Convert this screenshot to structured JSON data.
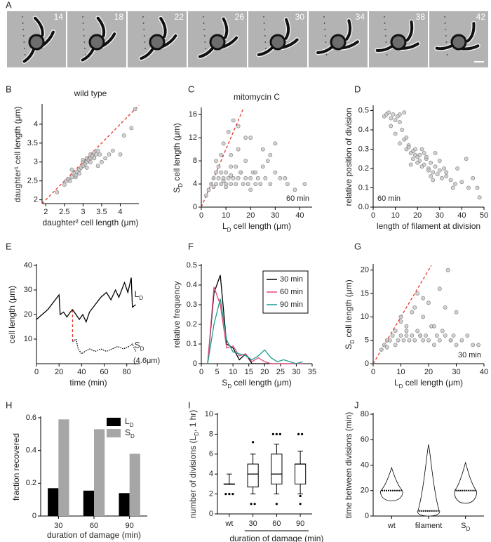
{
  "timelapse": {
    "panel": "A",
    "frames": [
      "14",
      "18",
      "22",
      "26",
      "30",
      "34",
      "38",
      "42"
    ]
  },
  "chart_data": [
    {
      "type": "scatter",
      "panel": "B",
      "title": "wild type",
      "xlabel": "daughter² cell length (μm)",
      "ylabel": "daughter¹ cell length (μm)",
      "xlim": [
        1.9,
        4.5
      ],
      "xticks": [
        2,
        2.5,
        3,
        3.5,
        4
      ],
      "ylim": [
        1.9,
        4.5
      ],
      "yticks": [
        2,
        2.5,
        3,
        3.5,
        4
      ],
      "identity_line": {
        "color": "#e8352e"
      },
      "color": "#c4c4c4",
      "x": [
        2.3,
        2.5,
        2.55,
        2.6,
        2.65,
        2.7,
        2.75,
        2.8,
        2.85,
        2.9,
        2.95,
        3.0,
        3.0,
        3.05,
        3.1,
        3.1,
        3.15,
        3.2,
        3.2,
        3.25,
        3.3,
        3.3,
        3.35,
        3.4,
        3.45,
        3.5,
        3.6,
        3.7,
        3.8,
        4.0,
        4.1,
        4.3,
        4.4,
        2.7,
        2.9,
        3.0,
        3.2,
        3.1,
        2.8,
        3.4
      ],
      "values": [
        2.2,
        2.4,
        2.5,
        2.55,
        2.5,
        2.6,
        2.7,
        2.6,
        2.75,
        2.8,
        2.85,
        2.9,
        3.0,
        2.95,
        3.0,
        3.1,
        3.05,
        3.1,
        3.2,
        3.15,
        3.25,
        3.1,
        3.2,
        3.3,
        3.2,
        3.0,
        3.1,
        3.2,
        3.3,
        3.2,
        3.7,
        3.9,
        4.4,
        2.8,
        2.7,
        3.05,
        3.0,
        2.85,
        2.65,
        2.9
      ]
    },
    {
      "type": "scatter",
      "panel": "C",
      "title": "mitomycin C",
      "xlabel": [
        "L",
        "D",
        " cell length (μm)"
      ],
      "ylabel": [
        "S",
        "D",
        " cell length (μm)"
      ],
      "annotation": "60 min",
      "xlim": [
        0,
        45
      ],
      "xticks": [
        0,
        10,
        20,
        30,
        40
      ],
      "ylim": [
        0,
        17
      ],
      "yticks": [
        0,
        4,
        8,
        12,
        16
      ],
      "identity_line": {
        "color": "#e8352e"
      },
      "color": "#c4c4c4",
      "x": [
        2,
        3,
        4,
        5,
        5,
        6,
        6,
        7,
        7,
        8,
        8,
        9,
        9,
        10,
        10,
        11,
        11,
        12,
        12,
        13,
        13,
        14,
        15,
        15,
        16,
        17,
        18,
        18,
        19,
        20,
        21,
        22,
        23,
        24,
        25,
        26,
        28,
        30,
        32,
        35,
        38,
        42,
        6,
        8,
        10,
        12,
        14,
        16,
        18,
        20,
        22,
        25,
        28,
        30,
        9,
        12,
        15,
        20,
        27,
        34
      ],
      "values": [
        2,
        3,
        4,
        3.5,
        5,
        4,
        6,
        5,
        7,
        4,
        9,
        5,
        11,
        4,
        6,
        5,
        13,
        4,
        7,
        5,
        15,
        4,
        5,
        10,
        6,
        4,
        5,
        12,
        4,
        5,
        6,
        4,
        5,
        4,
        7,
        5,
        4,
        6,
        5,
        4,
        3,
        4,
        8,
        6,
        3.5,
        9,
        7,
        6,
        8,
        3,
        6,
        10,
        9,
        11,
        4.5,
        5.5,
        14,
        12,
        8,
        5
      ]
    },
    {
      "type": "scatter",
      "panel": "D",
      "xlabel": "length of filament at division",
      "ylabel": "relative position of division",
      "annotation": "60 min",
      "xlim": [
        0,
        50
      ],
      "xticks": [
        0,
        10,
        20,
        30,
        40,
        50
      ],
      "ylim": [
        0,
        0.52
      ],
      "yticks": [
        {
          "value": 0,
          "label": "0.0"
        },
        0.1,
        0.2,
        0.3,
        0.4,
        0.5
      ],
      "color": "#c4c4c4",
      "x": [
        5,
        6,
        7,
        8,
        9,
        10,
        11,
        12,
        13,
        14,
        15,
        16,
        17,
        18,
        19,
        20,
        21,
        22,
        23,
        24,
        25,
        26,
        27,
        28,
        29,
        30,
        31,
        32,
        33,
        35,
        37,
        40,
        43,
        45,
        48,
        8,
        10,
        12,
        15,
        18,
        20,
        22,
        25,
        28,
        30,
        33,
        36,
        12,
        16,
        19,
        21,
        24,
        27,
        14,
        17,
        23,
        26,
        38,
        42,
        47
      ],
      "values": [
        0.47,
        0.48,
        0.49,
        0.46,
        0.48,
        0.45,
        0.47,
        0.48,
        0.4,
        0.35,
        0.3,
        0.32,
        0.28,
        0.25,
        0.27,
        0.26,
        0.24,
        0.3,
        0.22,
        0.25,
        0.2,
        0.23,
        0.18,
        0.21,
        0.17,
        0.19,
        0.15,
        0.2,
        0.16,
        0.14,
        0.12,
        0.13,
        0.1,
        0.15,
        0.05,
        0.42,
        0.38,
        0.33,
        0.36,
        0.29,
        0.23,
        0.21,
        0.19,
        0.28,
        0.24,
        0.18,
        0.1,
        0.44,
        0.31,
        0.3,
        0.27,
        0.26,
        0.14,
        0.49,
        0.22,
        0.28,
        0.16,
        0.2,
        0.25,
        0.1
      ]
    },
    {
      "type": "line",
      "panel": "E",
      "xlabel": "time (min)",
      "ylabel": "cell length (μm)",
      "annotation": "(4.6μm)",
      "xlim": [
        0,
        92
      ],
      "xticks": [
        0,
        20,
        40,
        60,
        80
      ],
      "ylim": [
        0,
        40
      ],
      "yticks": [
        10,
        20,
        30,
        40
      ],
      "division_marker": {
        "x": 32,
        "from": 22,
        "to": 9,
        "color": "#e8352e"
      },
      "series": [
        {
          "name": [
            "L",
            "D"
          ],
          "color": "#000000",
          "dash": "solid",
          "x": [
            0,
            10,
            20,
            21,
            24,
            27,
            30,
            32,
            35,
            38,
            41,
            44,
            47,
            52,
            57,
            62,
            66,
            70,
            73,
            78,
            81,
            84,
            85,
            88
          ],
          "values": [
            18,
            22,
            28,
            20,
            21,
            19,
            21,
            22,
            20,
            18,
            20,
            17,
            21,
            24,
            27,
            29,
            26,
            30,
            27,
            33,
            29,
            35,
            23,
            24
          ]
        },
        {
          "name": [
            "S",
            "D"
          ],
          "color": "#000000",
          "dash": "dotted",
          "x": [
            32,
            35,
            37,
            40,
            43,
            47,
            52,
            57,
            62,
            67,
            72,
            77,
            82,
            85,
            88
          ],
          "values": [
            9,
            10,
            6,
            4,
            5,
            6,
            5,
            6,
            5,
            6,
            7,
            6,
            7,
            8,
            5
          ]
        }
      ]
    },
    {
      "type": "line",
      "panel": "F",
      "xlabel": [
        "S",
        "D",
        " cell length (μm)"
      ],
      "ylabel": "relative frequency",
      "legend": "upper right",
      "xlim": [
        0,
        35
      ],
      "xticks": [
        0,
        5,
        10,
        15,
        20,
        25,
        30,
        35
      ],
      "ylim": [
        0,
        0.5
      ],
      "yticks": [
        0,
        0.1,
        0.2,
        0.3,
        0.4,
        0.5
      ],
      "series": [
        {
          "name": "30 min",
          "color": "#000000",
          "dash": "solid",
          "x": [
            2,
            4,
            6,
            8,
            10,
            12,
            14,
            16,
            18,
            20,
            22,
            24,
            26,
            28,
            30,
            32
          ],
          "values": [
            0,
            0.36,
            0.45,
            0.1,
            0.08,
            0.02,
            0.05,
            0,
            0,
            0,
            0,
            0,
            0,
            0,
            0,
            0
          ]
        },
        {
          "name": "60 min",
          "color": "#e0457b",
          "dash": "solid",
          "x": [
            2,
            4,
            6,
            8,
            10,
            12,
            14,
            16,
            18,
            20,
            22,
            24,
            26,
            28,
            30,
            32
          ],
          "values": [
            0,
            0.39,
            0.3,
            0.08,
            0.09,
            0.04,
            0.05,
            0.01,
            0.03,
            0.01,
            0,
            0,
            0,
            0,
            0,
            0
          ]
        },
        {
          "name": "90 min",
          "color": "#1a9e8f",
          "dash": "solid",
          "x": [
            2,
            4,
            6,
            8,
            10,
            12,
            14,
            16,
            18,
            20,
            22,
            24,
            26,
            28,
            30,
            32
          ],
          "values": [
            0,
            0.2,
            0.33,
            0.12,
            0.06,
            0.05,
            0.04,
            0.02,
            0.04,
            0.07,
            0.03,
            0.01,
            0.02,
            0.01,
            0,
            0.01
          ]
        }
      ]
    },
    {
      "type": "scatter",
      "panel": "G",
      "xlabel": [
        "L",
        "D",
        " cell length (μm)"
      ],
      "ylabel": [
        "S",
        "D",
        " cell length (μm)"
      ],
      "annotation": "30 min",
      "xlim": [
        0,
        40
      ],
      "xticks": [
        0,
        10,
        20,
        30,
        40
      ],
      "ylim": [
        0,
        21
      ],
      "yticks": [
        0,
        5,
        10,
        15,
        20
      ],
      "identity_line": {
        "color": "#e8352e"
      },
      "color": "#c4c4c4",
      "x": [
        3,
        4,
        5,
        5,
        6,
        7,
        8,
        8,
        9,
        10,
        10,
        11,
        12,
        12,
        13,
        14,
        15,
        15,
        16,
        17,
        18,
        18,
        19,
        20,
        21,
        22,
        23,
        24,
        25,
        26,
        27,
        28,
        29,
        30,
        32,
        34,
        36,
        38,
        10,
        14,
        16,
        18,
        20,
        22,
        26,
        28,
        24,
        12,
        30,
        17
      ],
      "values": [
        3,
        4,
        5,
        3.5,
        5,
        6,
        4,
        7,
        5,
        6,
        10,
        5,
        6,
        8,
        5,
        6,
        12,
        5,
        7,
        6,
        5,
        14,
        6,
        5,
        8,
        4,
        6,
        5,
        7,
        6,
        20,
        5,
        6,
        4,
        5,
        6,
        4,
        4,
        9,
        11,
        15,
        10,
        13,
        8,
        12,
        5,
        16,
        7,
        11,
        6
      ]
    },
    {
      "type": "bar",
      "panel": "H",
      "xlabel": "duration of damage (min)",
      "ylabel": "fraction recovered",
      "legend": "upper right",
      "categories": [
        "30",
        "60",
        "90"
      ],
      "ylim": [
        0,
        0.6
      ],
      "yticks": [
        0,
        0.2,
        0.4,
        0.6
      ],
      "series": [
        {
          "name": [
            "L",
            "D"
          ],
          "color": "#000000",
          "values": [
            0.17,
            0.155,
            0.14
          ]
        },
        {
          "name": [
            "S",
            "D"
          ],
          "color": "#a6a6a6",
          "values": [
            0.59,
            0.53,
            0.38
          ]
        }
      ]
    },
    {
      "type": "box",
      "panel": "I",
      "ylabel": [
        "number of divisions (L",
        "D",
        ", 1 hr)"
      ],
      "group_label": "duration of damage (min)",
      "categories": [
        "wt",
        "30",
        "60",
        "90"
      ],
      "ylim": [
        0,
        10
      ],
      "yticks": [
        0,
        2,
        4,
        6,
        8,
        10
      ],
      "boxes": [
        {
          "whislo": 3,
          "q1": 3,
          "med": 3,
          "q3": 3,
          "whishi": 4,
          "fliers": [
            2,
            2,
            2
          ]
        },
        {
          "whislo": 2,
          "q1": 2.7,
          "med": 4,
          "q3": 5,
          "whishi": 6,
          "fliers": [
            1,
            1,
            7.2
          ]
        },
        {
          "whislo": 2,
          "q1": 3,
          "med": 4,
          "q3": 6,
          "whishi": 7,
          "fliers": [
            8,
            8,
            8,
            1
          ]
        },
        {
          "whislo": 2,
          "q1": 3,
          "med": 5,
          "q3": 5,
          "whishi": 6.3,
          "fliers": [
            8,
            8,
            1.8,
            1
          ]
        }
      ]
    },
    {
      "type": "violin",
      "panel": "J",
      "ylabel": "time between divisions (min)",
      "categories": [
        "wt",
        "filament",
        [
          "S",
          "D"
        ]
      ],
      "ylim": [
        0,
        80
      ],
      "yticks": [
        0,
        20,
        40,
        60,
        80
      ],
      "violins": [
        {
          "min": 12,
          "median": 20,
          "max": 38
        },
        {
          "min": 0,
          "median": 4,
          "max": 56
        },
        {
          "min": 10,
          "median": 20,
          "max": 42
        }
      ]
    }
  ]
}
